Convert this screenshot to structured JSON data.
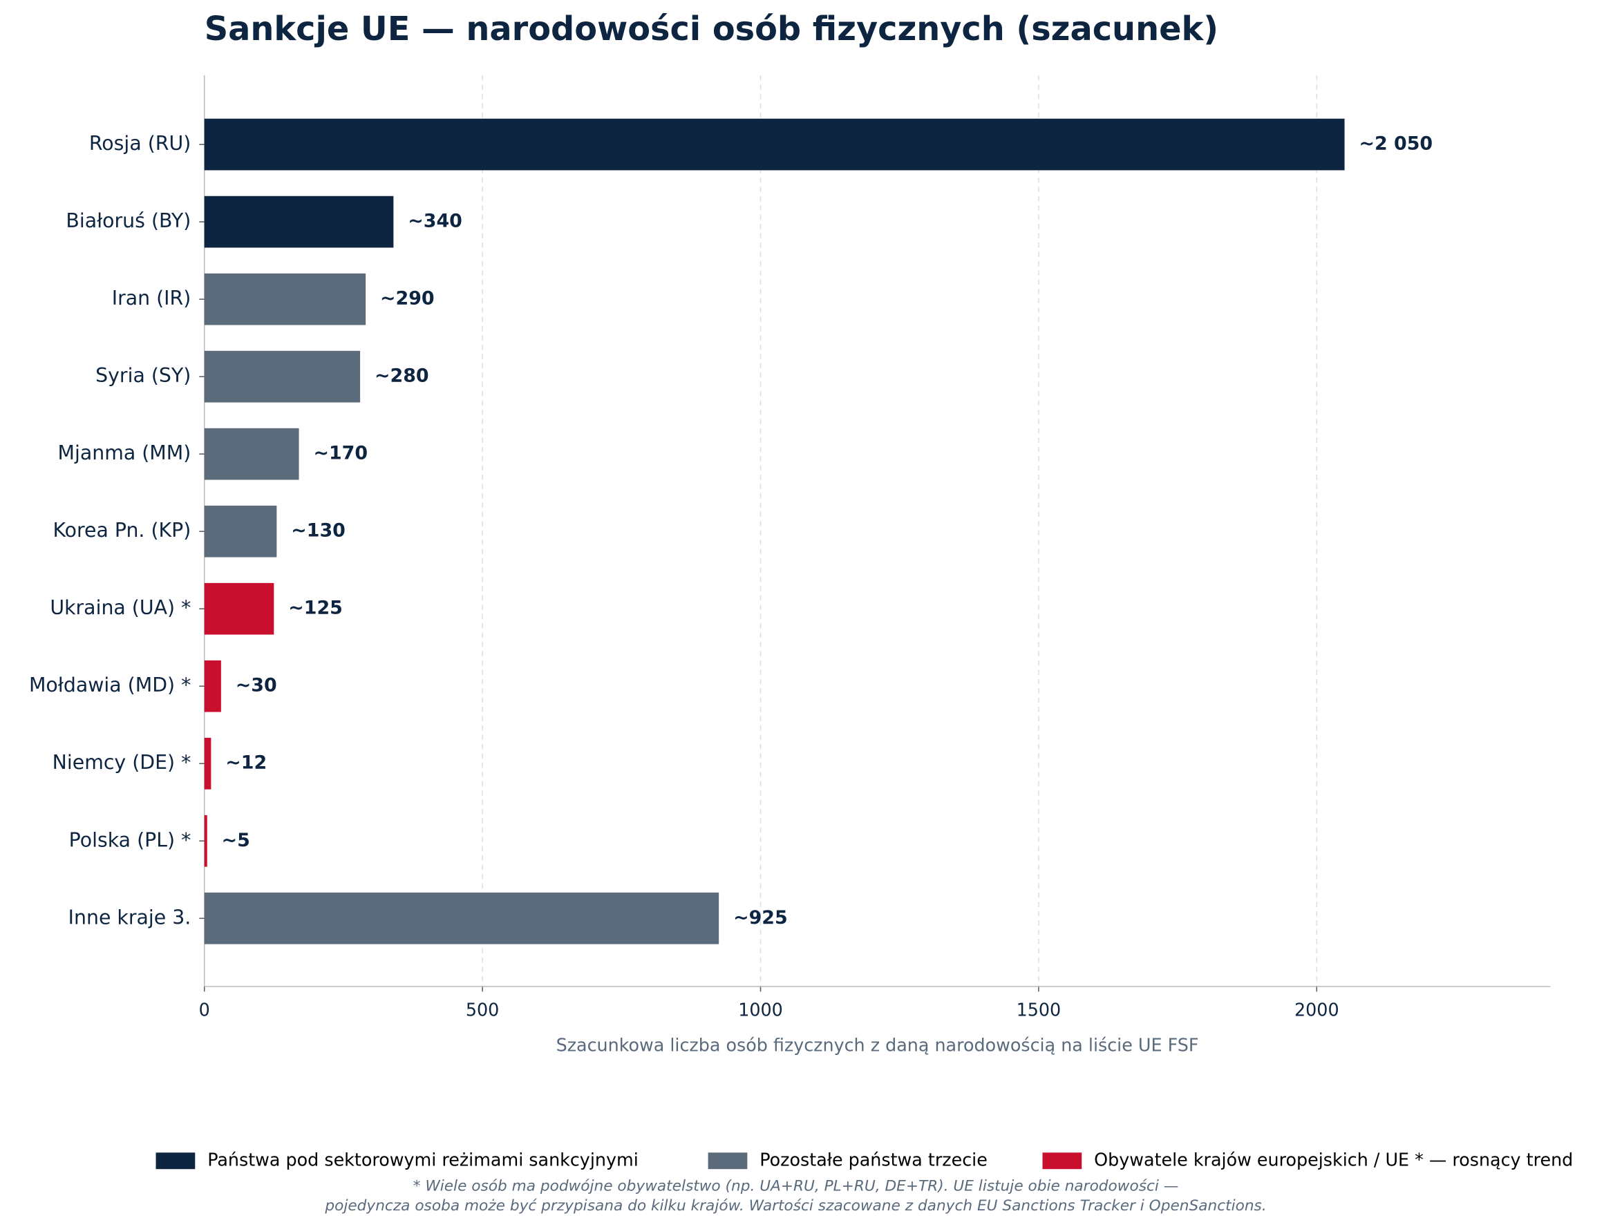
{
  "chart_data": {
    "type": "bar",
    "orientation": "horizontal",
    "title": "Sankcje UE — narodowości osób fizycznych (szacunek)",
    "xlabel": "Szacunkowa liczba osób fizycznych z daną narodowością na liście UE FSF",
    "categories": [
      "Rosja (RU)",
      "Białoruś (BY)",
      "Iran (IR)",
      "Syria (SY)",
      "Mjanma (MM)",
      "Korea Pn. (KP)",
      "Ukraina (UA) *",
      "Mołdawia (MD) *",
      "Niemcy (DE) *",
      "Polska (PL) *",
      "Inne kraje 3."
    ],
    "series": [
      {
        "name": "Państwa pod sektorowymi reżimami sankcyjnymi",
        "color": "#0d2540",
        "values": [
          2050,
          340,
          null,
          null,
          null,
          null,
          null,
          null,
          null,
          null,
          null
        ],
        "value_labels": [
          "~2 050",
          "~340",
          null,
          null,
          null,
          null,
          null,
          null,
          null,
          null,
          null
        ]
      },
      {
        "name": "Pozostałe państwa trzecie",
        "color": "#5b6b7c",
        "values": [
          null,
          null,
          290,
          280,
          170,
          130,
          null,
          null,
          null,
          null,
          925
        ],
        "value_labels": [
          null,
          null,
          "~290",
          "~280",
          "~170",
          "~130",
          null,
          null,
          null,
          null,
          "~925"
        ]
      },
      {
        "name": "Obywatele krajów europejskich / UE * — rosnący trend",
        "color": "#c8102e",
        "values": [
          null,
          null,
          null,
          null,
          null,
          null,
          125,
          30,
          12,
          5,
          null
        ],
        "value_labels": [
          null,
          null,
          null,
          null,
          null,
          null,
          "~125",
          "~30",
          "~12",
          "~5",
          null
        ]
      }
    ],
    "xlim": [
      0,
      2420
    ],
    "xticks": [
      0,
      500,
      1000,
      1500,
      2000
    ],
    "grid": true,
    "legend": "bottom",
    "footnote": [
      "* Wiele osób ma podwójne obywatelstwo (np. UA+RU, PL+RU, DE+TR). UE listuje obie narodowości —",
      "pojedyncza osoba może być przypisana do kilku krajów. Wartości szacowane z danych EU Sanctions Tracker i OpenSanctions."
    ]
  }
}
